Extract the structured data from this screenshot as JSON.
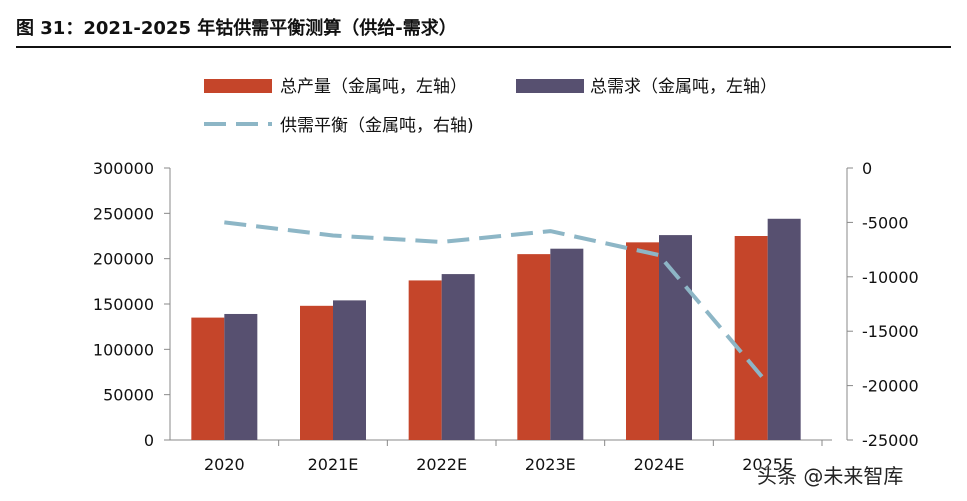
{
  "figure": {
    "title": "图 31：2021-2025 年钴供需平衡测算（供给-需求）",
    "watermark": "头条 @未来智库"
  },
  "chart_data": {
    "type": "bar",
    "categories": [
      "2020",
      "2021E",
      "2022E",
      "2023E",
      "2024E",
      "2025E"
    ],
    "series": [
      {
        "name": "总产量（金属吨，左轴）",
        "kind": "bar",
        "axis": "left",
        "color": "#C5452A",
        "values": [
          135000,
          148000,
          176000,
          205000,
          218000,
          225000
        ]
      },
      {
        "name": "总需求（金属吨，左轴）",
        "kind": "bar",
        "axis": "left",
        "color": "#575070",
        "values": [
          139000,
          154000,
          183000,
          211000,
          226000,
          244000
        ]
      },
      {
        "name": "供需平衡（金属吨，右轴)",
        "kind": "line",
        "axis": "right",
        "color": "#8DB6C6",
        "values": [
          -5000,
          -6200,
          -6800,
          -5800,
          -8000,
          -19800
        ]
      }
    ],
    "y_left": {
      "min": 0,
      "max": 300000,
      "step": 50000,
      "ticks": [
        "0",
        "50000",
        "100000",
        "150000",
        "200000",
        "250000",
        "300000"
      ]
    },
    "y_right": {
      "min": -25000,
      "max": 0,
      "step": 5000,
      "ticks": [
        "-25000",
        "-20000",
        "-15000",
        "-10000",
        "-5000",
        "0"
      ]
    },
    "legend": [
      {
        "label": "总产量（金属吨，左轴）",
        "color": "#C5452A",
        "style": "box"
      },
      {
        "label": "总需求（金属吨，左轴）",
        "color": "#575070",
        "style": "box"
      },
      {
        "label": "供需平衡（金属吨，右轴)",
        "color": "#8DB6C6",
        "style": "dash"
      }
    ],
    "legend_position": "top",
    "grid": false
  }
}
